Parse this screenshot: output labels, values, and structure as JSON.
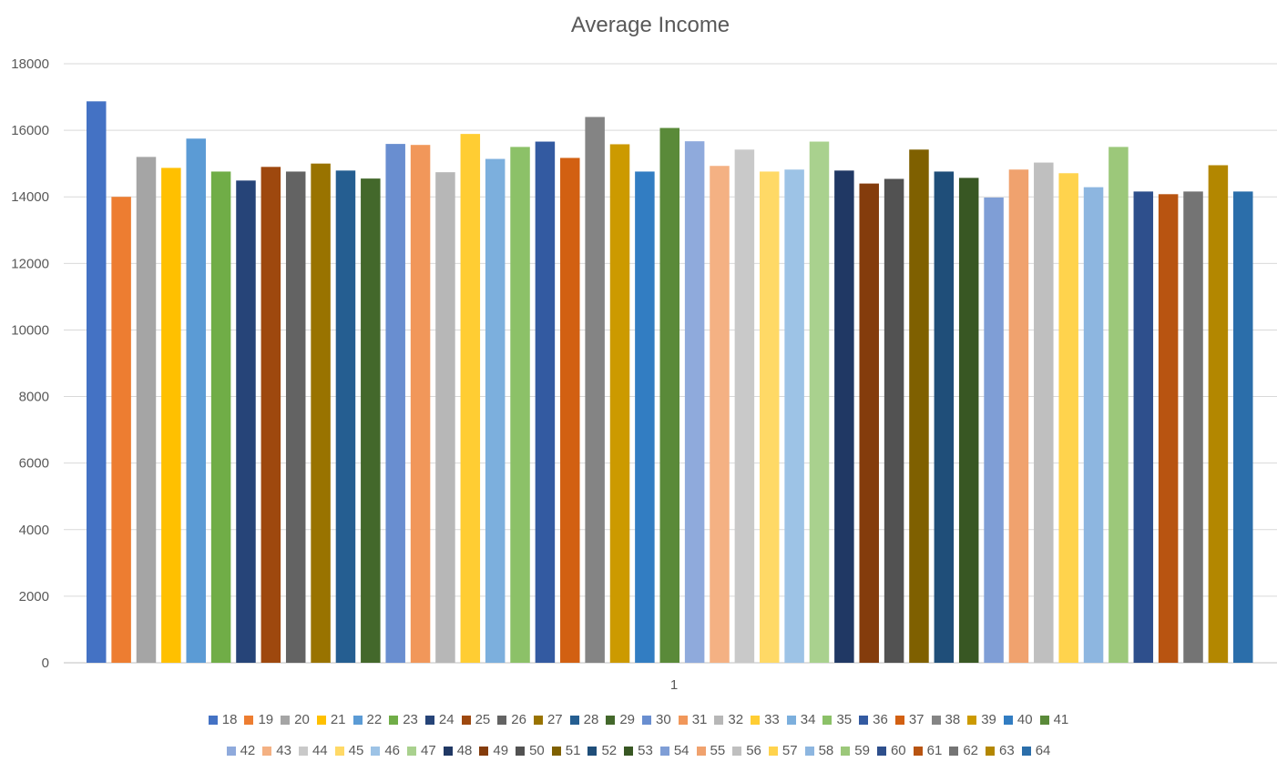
{
  "chart_data": {
    "type": "bar",
    "title": "Average Income",
    "categories": [
      "1"
    ],
    "ylim": [
      0,
      18000
    ],
    "yticks": [
      0,
      2000,
      4000,
      6000,
      8000,
      10000,
      12000,
      14000,
      16000,
      18000
    ],
    "grid": true,
    "legend_position": "bottom",
    "series": [
      {
        "name": "18",
        "values": [
          16870
        ],
        "color": "#4472C4"
      },
      {
        "name": "19",
        "values": [
          14000
        ],
        "color": "#ED7D31"
      },
      {
        "name": "20",
        "values": [
          15200
        ],
        "color": "#A5A5A5"
      },
      {
        "name": "21",
        "values": [
          14870
        ],
        "color": "#FFC000"
      },
      {
        "name": "22",
        "values": [
          15750
        ],
        "color": "#5B9BD5"
      },
      {
        "name": "23",
        "values": [
          14760
        ],
        "color": "#70AD47"
      },
      {
        "name": "24",
        "values": [
          14490
        ],
        "color": "#264478"
      },
      {
        "name": "25",
        "values": [
          14900
        ],
        "color": "#9E480E"
      },
      {
        "name": "26",
        "values": [
          14760
        ],
        "color": "#636363"
      },
      {
        "name": "27",
        "values": [
          15000
        ],
        "color": "#997300"
      },
      {
        "name": "28",
        "values": [
          14790
        ],
        "color": "#255E91"
      },
      {
        "name": "29",
        "values": [
          14550
        ],
        "color": "#43682B"
      },
      {
        "name": "30",
        "values": [
          15590
        ],
        "color": "#698ED0"
      },
      {
        "name": "31",
        "values": [
          15560
        ],
        "color": "#F1975A"
      },
      {
        "name": "32",
        "values": [
          14740
        ],
        "color": "#B7B7B7"
      },
      {
        "name": "33",
        "values": [
          15890
        ],
        "color": "#FFCD33"
      },
      {
        "name": "34",
        "values": [
          15140
        ],
        "color": "#7CAFDD"
      },
      {
        "name": "35",
        "values": [
          15500
        ],
        "color": "#8CC168"
      },
      {
        "name": "36",
        "values": [
          15660
        ],
        "color": "#335AA1"
      },
      {
        "name": "37",
        "values": [
          15170
        ],
        "color": "#D26012"
      },
      {
        "name": "38",
        "values": [
          16400
        ],
        "color": "#848484"
      },
      {
        "name": "39",
        "values": [
          15580
        ],
        "color": "#CC9A00"
      },
      {
        "name": "40",
        "values": [
          14760
        ],
        "color": "#327DC2"
      },
      {
        "name": "41",
        "values": [
          16070
        ],
        "color": "#5A8A39"
      },
      {
        "name": "42",
        "values": [
          15670
        ],
        "color": "#8FAADC"
      },
      {
        "name": "43",
        "values": [
          14930
        ],
        "color": "#F4B183"
      },
      {
        "name": "44",
        "values": [
          15420
        ],
        "color": "#C9C9C9"
      },
      {
        "name": "45",
        "values": [
          14760
        ],
        "color": "#FFD966"
      },
      {
        "name": "46",
        "values": [
          14820
        ],
        "color": "#9DC3E6"
      },
      {
        "name": "47",
        "values": [
          15660
        ],
        "color": "#A9D18E"
      },
      {
        "name": "48",
        "values": [
          14790
        ],
        "color": "#203864"
      },
      {
        "name": "49",
        "values": [
          14400
        ],
        "color": "#843C0C"
      },
      {
        "name": "50",
        "values": [
          14540
        ],
        "color": "#525252"
      },
      {
        "name": "51",
        "values": [
          15420
        ],
        "color": "#7F6000"
      },
      {
        "name": "52",
        "values": [
          14760
        ],
        "color": "#1F4E79"
      },
      {
        "name": "53",
        "values": [
          14570
        ],
        "color": "#385723"
      },
      {
        "name": "54",
        "values": [
          13980
        ],
        "color": "#7F9ED6"
      },
      {
        "name": "55",
        "values": [
          14820
        ],
        "color": "#F0A26E"
      },
      {
        "name": "56",
        "values": [
          15030
        ],
        "color": "#BFBFBF"
      },
      {
        "name": "57",
        "values": [
          14710
        ],
        "color": "#FFD34D"
      },
      {
        "name": "58",
        "values": [
          14290
        ],
        "color": "#8DB6E0"
      },
      {
        "name": "59",
        "values": [
          15500
        ],
        "color": "#9CC87A"
      },
      {
        "name": "60",
        "values": [
          14160
        ],
        "color": "#2E4F8C"
      },
      {
        "name": "61",
        "values": [
          14080
        ],
        "color": "#B85411"
      },
      {
        "name": "62",
        "values": [
          14160
        ],
        "color": "#747474"
      },
      {
        "name": "63",
        "values": [
          14950
        ],
        "color": "#B38700"
      },
      {
        "name": "64",
        "values": [
          14160
        ],
        "color": "#2B6EAA"
      }
    ]
  }
}
